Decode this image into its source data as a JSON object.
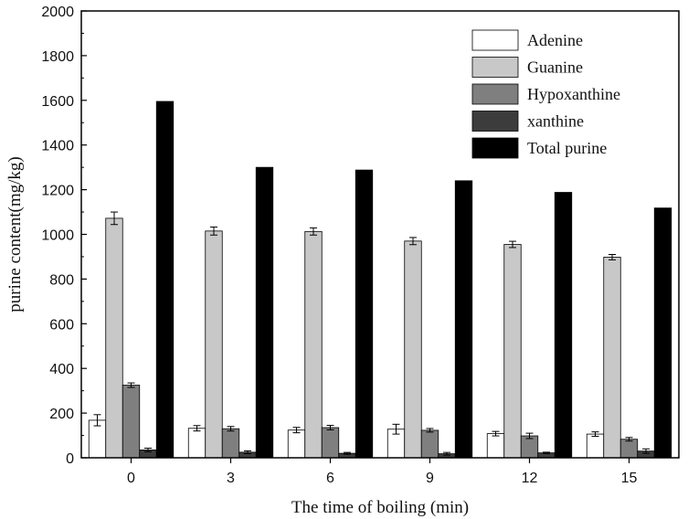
{
  "chart_data": {
    "type": "bar",
    "title": "",
    "xlabel": "The time of boiling (min)",
    "ylabel": "purine content(mg/kg)",
    "categories": [
      "0",
      "3",
      "6",
      "9",
      "12",
      "15"
    ],
    "ylim": [
      0,
      2000
    ],
    "yticks": [
      "0",
      "200",
      "400",
      "600",
      "800",
      "1000",
      "1200",
      "1400",
      "1600",
      "1800",
      "2000"
    ],
    "ytick_values": [
      0,
      200,
      400,
      600,
      800,
      1000,
      1200,
      1400,
      1600,
      1800,
      2000
    ],
    "grid": false,
    "legend_position": "top-right",
    "series": [
      {
        "name": "Adenine",
        "color": "#ffffff",
        "values": [
          168,
          132,
          124,
          128,
          108,
          106
        ],
        "errors": [
          25,
          12,
          12,
          22,
          10,
          10
        ]
      },
      {
        "name": "Guanine",
        "color": "#c8c8c8",
        "values": [
          1072,
          1015,
          1013,
          970,
          955,
          898
        ],
        "errors": [
          28,
          18,
          16,
          16,
          14,
          12
        ]
      },
      {
        "name": "Hypoxanthine",
        "color": "#7f7f7f",
        "values": [
          325,
          130,
          135,
          123,
          98,
          83
        ],
        "errors": [
          10,
          10,
          10,
          8,
          12,
          8
        ]
      },
      {
        "name": "xanthine",
        "color": "#3c3c3c",
        "values": [
          35,
          25,
          20,
          18,
          22,
          30
        ],
        "errors": [
          8,
          6,
          4,
          6,
          3,
          10
        ]
      },
      {
        "name": "Total purine",
        "color": "#000000",
        "values": [
          1595,
          1300,
          1288,
          1240,
          1188,
          1118
        ],
        "errors": [
          0,
          0,
          0,
          0,
          0,
          0
        ]
      }
    ]
  }
}
